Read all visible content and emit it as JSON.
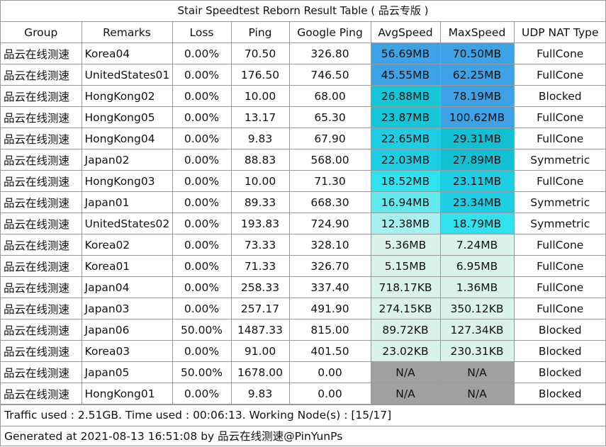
{
  "title": "Stair Speedtest Reborn Result Table ( 品云专版 )",
  "headers": [
    "Group",
    "Remarks",
    "Loss",
    "Ping",
    "Google Ping",
    "AvgSpeed",
    "MaxSpeed",
    "UDP NAT Type"
  ],
  "rows": [
    {
      "group": "品云在线测速",
      "remarks": "Korea04",
      "loss": "0.00%",
      "ping": "70.50",
      "google_ping": "326.80",
      "avg": "56.69MB",
      "max": "70.50MB",
      "nat": "FullCone",
      "avg_color": "#3ea2e6",
      "max_color": "#3ea2e6"
    },
    {
      "group": "品云在线测速",
      "remarks": "UnitedStates01",
      "loss": "0.00%",
      "ping": "176.50",
      "google_ping": "746.50",
      "avg": "45.55MB",
      "max": "62.25MB",
      "nat": "FullCone",
      "avg_color": "#3ea2e6",
      "max_color": "#3ea2e6"
    },
    {
      "group": "品云在线测速",
      "remarks": "HongKong02",
      "loss": "0.00%",
      "ping": "10.00",
      "google_ping": "68.00",
      "avg": "26.88MB",
      "max": "78.19MB",
      "nat": "Blocked",
      "avg_color": "#15c6d8",
      "max_color": "#3ea2e6"
    },
    {
      "group": "品云在线测速",
      "remarks": "HongKong05",
      "loss": "0.00%",
      "ping": "13.17",
      "google_ping": "65.30",
      "avg": "23.87MB",
      "max": "100.62MB",
      "nat": "FullCone",
      "avg_color": "#15c6d8",
      "max_color": "#3ea2e6"
    },
    {
      "group": "品云在线测速",
      "remarks": "HongKong04",
      "loss": "0.00%",
      "ping": "9.83",
      "google_ping": "67.90",
      "avg": "22.65MB",
      "max": "29.31MB",
      "nat": "FullCone",
      "avg_color": "#1ccde3",
      "max_color": "#12c0d3"
    },
    {
      "group": "品云在线测速",
      "remarks": "Japan02",
      "loss": "0.00%",
      "ping": "88.83",
      "google_ping": "568.00",
      "avg": "22.03MB",
      "max": "27.89MB",
      "nat": "Symmetric",
      "avg_color": "#1ccde3",
      "max_color": "#12c0d3"
    },
    {
      "group": "品云在线测速",
      "remarks": "HongKong03",
      "loss": "0.00%",
      "ping": "10.00",
      "google_ping": "71.30",
      "avg": "18.52MB",
      "max": "23.11MB",
      "nat": "FullCone",
      "avg_color": "#2fe2ee",
      "max_color": "#1ccde3"
    },
    {
      "group": "品云在线测速",
      "remarks": "Japan01",
      "loss": "0.00%",
      "ping": "89.33",
      "google_ping": "668.30",
      "avg": "16.94MB",
      "max": "23.34MB",
      "nat": "Symmetric",
      "avg_color": "#62e9ee",
      "max_color": "#1ccde3"
    },
    {
      "group": "品云在线测速",
      "remarks": "UnitedStates02",
      "loss": "0.00%",
      "ping": "193.83",
      "google_ping": "724.90",
      "avg": "12.38MB",
      "max": "18.79MB",
      "nat": "Symmetric",
      "avg_color": "#a6f0ef",
      "max_color": "#2fe2ee"
    },
    {
      "group": "品云在线测速",
      "remarks": "Korea02",
      "loss": "0.00%",
      "ping": "73.33",
      "google_ping": "328.10",
      "avg": "5.36MB",
      "max": "7.24MB",
      "nat": "FullCone",
      "avg_color": "#d9f2ec",
      "max_color": "#d9f2ec"
    },
    {
      "group": "品云在线测速",
      "remarks": "Korea01",
      "loss": "0.00%",
      "ping": "71.33",
      "google_ping": "326.70",
      "avg": "5.15MB",
      "max": "6.95MB",
      "nat": "FullCone",
      "avg_color": "#d9f2ec",
      "max_color": "#d9f2ec"
    },
    {
      "group": "品云在线测速",
      "remarks": "Japan04",
      "loss": "0.00%",
      "ping": "258.33",
      "google_ping": "337.40",
      "avg": "718.17KB",
      "max": "1.36MB",
      "nat": "FullCone",
      "avg_color": "#d9f2ec",
      "max_color": "#d9f2ec"
    },
    {
      "group": "品云在线测速",
      "remarks": "Japan03",
      "loss": "0.00%",
      "ping": "257.17",
      "google_ping": "491.90",
      "avg": "274.15KB",
      "max": "350.12KB",
      "nat": "FullCone",
      "avg_color": "#d9f2ec",
      "max_color": "#d9f2ec"
    },
    {
      "group": "品云在线测速",
      "remarks": "Japan06",
      "loss": "50.00%",
      "ping": "1487.33",
      "google_ping": "815.00",
      "avg": "89.72KB",
      "max": "127.34KB",
      "nat": "Blocked",
      "avg_color": "#d9f2ec",
      "max_color": "#d9f2ec"
    },
    {
      "group": "品云在线测速",
      "remarks": "Korea03",
      "loss": "0.00%",
      "ping": "91.00",
      "google_ping": "401.50",
      "avg": "23.02KB",
      "max": "230.31KB",
      "nat": "Blocked",
      "avg_color": "#d9f2ec",
      "max_color": "#d9f2ec"
    },
    {
      "group": "品云在线测速",
      "remarks": "Japan05",
      "loss": "50.00%",
      "ping": "1678.00",
      "google_ping": "0.00",
      "avg": "N/A",
      "max": "N/A",
      "nat": "Blocked",
      "avg_color": "#a0a0a0",
      "max_color": "#a0a0a0"
    },
    {
      "group": "品云在线测速",
      "remarks": "HongKong01",
      "loss": "0.00%",
      "ping": "9.83",
      "google_ping": "0.00",
      "avg": "N/A",
      "max": "N/A",
      "nat": "Blocked",
      "avg_color": "#a0a0a0",
      "max_color": "#a0a0a0"
    }
  ],
  "footer_traffic": "Traffic used : 2.51GB. Time used : 00:06:13. Working Node(s) : [15/17]",
  "footer_generated": "Generated at 2021-08-13 16:51:08 by 品云在线测速@PinYunPs"
}
